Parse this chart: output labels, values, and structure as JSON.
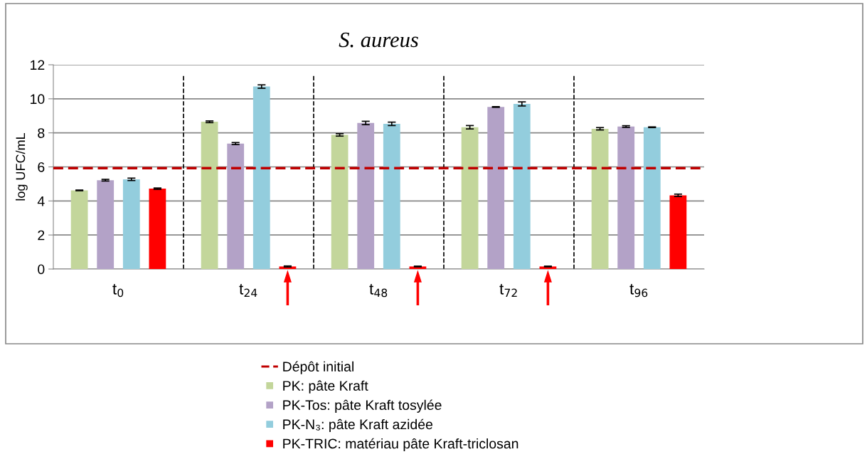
{
  "chart_data": {
    "type": "bar",
    "title": "S. aureus",
    "ylabel": "log UFC/mL",
    "categories": [
      "t$_{0}$",
      "t$_{24}$",
      "t$_{48}$",
      "t$_{72}$",
      "t$_{96}$"
    ],
    "series": [
      {
        "name": "PK: pâte Kraft",
        "color": "#c3d69b",
        "values": [
          4.62,
          8.65,
          7.88,
          8.33,
          8.24
        ],
        "errors": [
          0.02,
          0.05,
          0.07,
          0.1,
          0.07
        ]
      },
      {
        "name": "PK-Tos: pâte Kraft tosylée",
        "color": "#b3a2c7",
        "values": [
          5.22,
          7.37,
          8.58,
          9.52,
          8.37
        ],
        "errors": [
          0.05,
          0.06,
          0.1,
          0.02,
          0.05
        ]
      },
      {
        "name": "PK-N₃: pâte Kraft azidée",
        "color": "#93cddd",
        "values": [
          5.27,
          10.72,
          8.53,
          9.7,
          8.33
        ],
        "errors": [
          0.07,
          0.1,
          0.1,
          0.12,
          0.02
        ]
      },
      {
        "name": "PK-TRIC: matériau pâte Kraft-triclosan",
        "color": "#ff0000",
        "values": [
          4.72,
          0.15,
          0.15,
          0.15,
          4.33
        ],
        "errors": [
          0.04,
          0.03,
          0.02,
          0.02,
          0.07
        ]
      }
    ],
    "ylim": [
      0,
      12
    ],
    "yticks": [
      0,
      2,
      4,
      6,
      8,
      10,
      12
    ],
    "grid": "y",
    "legend": "bottom",
    "ref_lines": [
      {
        "axis": "y",
        "value": 5.93,
        "label": "Dépôt initial",
        "color": "#c00000",
        "line_style": "dashed"
      }
    ]
  }
}
